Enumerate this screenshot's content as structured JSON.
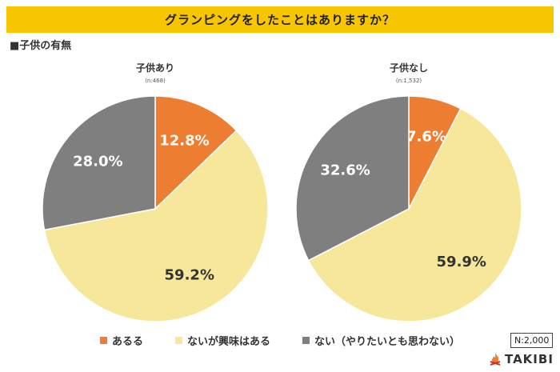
{
  "title": "グランピングをしたことはありますか？",
  "section_label": "■子供の有無",
  "legend": [
    {
      "label": "あるる",
      "color": "#ed7d31"
    },
    {
      "label": "ないが興味はある",
      "color": "#f6e79a"
    },
    {
      "label": "ない（やりたいとも思わない）",
      "color": "#7f7f7f"
    }
  ],
  "sample_total": "N:2,000",
  "brand": "TAKIBI",
  "chart_data": [
    {
      "type": "pie",
      "title": "子供あり",
      "sample": "(n:468)",
      "categories": [
        "ある",
        "ないが興味はある",
        "ない（やりたいとも思わない）"
      ],
      "values": [
        12.8,
        59.2,
        28.0
      ],
      "labels": [
        "12.8%",
        "59.2%",
        "28.0%"
      ],
      "colors": [
        "#ed7d31",
        "#f6e79a",
        "#7f7f7f"
      ],
      "label_colors": [
        "#ffffff",
        "#333333",
        "#ffffff"
      ]
    },
    {
      "type": "pie",
      "title": "子供なし",
      "sample": "(n:1,532)",
      "categories": [
        "ある",
        "ないが興味はある",
        "ない（やりたいとも思わない）"
      ],
      "values": [
        7.6,
        59.9,
        32.6
      ],
      "labels": [
        "7.6%",
        "59.9%",
        "32.6%"
      ],
      "colors": [
        "#ed7d31",
        "#f6e79a",
        "#7f7f7f"
      ],
      "label_colors": [
        "#ffffff",
        "#333333",
        "#ffffff"
      ]
    }
  ]
}
